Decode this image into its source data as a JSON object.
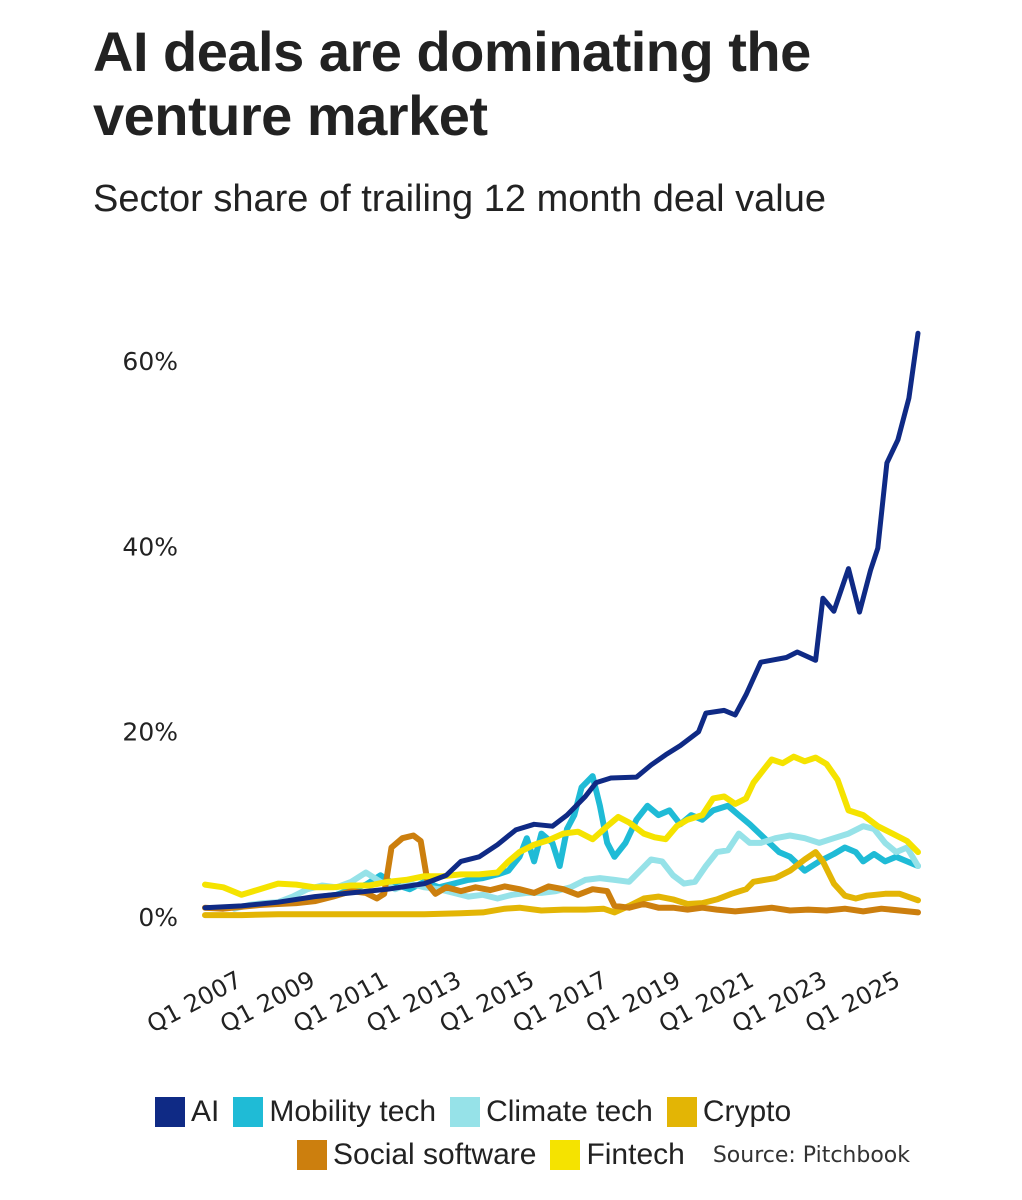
{
  "header": {
    "title": "AI deals are dominating the venture market",
    "subtitle": "Sector share of trailing 12 month deal value"
  },
  "source": "Source: Pitchbook",
  "chart_data": {
    "type": "line",
    "title": "AI deals are dominating the venture market",
    "subtitle": "Sector share of trailing 12 month deal value",
    "xlabel": "",
    "ylabel": "",
    "xlim": [
      2006.0,
      2025.5
    ],
    "ylim": [
      0,
      60
    ],
    "yticks": [
      0,
      20,
      40,
      60
    ],
    "ytick_labels": [
      "0%",
      "20%",
      "40%",
      "60%"
    ],
    "xticks": [
      2007,
      2009,
      2011,
      2013,
      2015,
      2017,
      2019,
      2021,
      2023,
      2025
    ],
    "xtick_labels": [
      "Q1 2007",
      "Q1 2009",
      "Q1 2011",
      "Q1 2013",
      "Q1 2015",
      "Q1 2017",
      "Q1 2019",
      "Q1 2021",
      "Q1 2023",
      "Q1 2025"
    ],
    "grid": false,
    "legend_position": "bottom",
    "series": [
      {
        "name": "Mobility tech",
        "color": "#1FBBD6",
        "points": [
          [
            2008.8,
            1.8
          ],
          [
            2009.2,
            2.2
          ],
          [
            2009.6,
            2.4
          ],
          [
            2010.0,
            3.0
          ],
          [
            2010.4,
            3.5
          ],
          [
            2010.8,
            4.5
          ],
          [
            2011.2,
            3.5
          ],
          [
            2011.6,
            3.0
          ],
          [
            2012.0,
            3.8
          ],
          [
            2012.4,
            3.2
          ],
          [
            2012.8,
            3.6
          ],
          [
            2013.2,
            4.0
          ],
          [
            2013.6,
            4.2
          ],
          [
            2014.0,
            4.6
          ],
          [
            2014.3,
            5.0
          ],
          [
            2014.6,
            6.5
          ],
          [
            2014.8,
            8.5
          ],
          [
            2015.0,
            6.0
          ],
          [
            2015.2,
            9.0
          ],
          [
            2015.5,
            8.0
          ],
          [
            2015.7,
            5.5
          ],
          [
            2015.9,
            9.5
          ],
          [
            2016.1,
            11.0
          ],
          [
            2016.3,
            14.0
          ],
          [
            2016.6,
            15.2
          ],
          [
            2016.8,
            12.0
          ],
          [
            2017.0,
            8.0
          ],
          [
            2017.2,
            6.5
          ],
          [
            2017.5,
            8.0
          ],
          [
            2017.8,
            10.5
          ],
          [
            2018.1,
            12.0
          ],
          [
            2018.4,
            11.0
          ],
          [
            2018.7,
            11.5
          ],
          [
            2019.0,
            10.0
          ],
          [
            2019.3,
            11.0
          ],
          [
            2019.6,
            10.5
          ],
          [
            2019.9,
            11.5
          ],
          [
            2020.3,
            12.0
          ],
          [
            2020.6,
            11.0
          ],
          [
            2020.9,
            10.0
          ],
          [
            2021.3,
            8.5
          ],
          [
            2021.7,
            7.0
          ],
          [
            2022.0,
            6.5
          ],
          [
            2022.4,
            5.0
          ],
          [
            2022.8,
            6.0
          ],
          [
            2023.2,
            6.8
          ],
          [
            2023.5,
            7.5
          ],
          [
            2023.8,
            7.0
          ],
          [
            2024.0,
            6.0
          ],
          [
            2024.3,
            6.8
          ],
          [
            2024.6,
            6.0
          ],
          [
            2024.9,
            6.5
          ],
          [
            2025.2,
            6.0
          ],
          [
            2025.5,
            5.5
          ]
        ]
      },
      {
        "name": "Climate tech",
        "color": "#96E2E8",
        "points": [
          [
            2006.8,
            0.9
          ],
          [
            2007.2,
            1.3
          ],
          [
            2007.6,
            1.5
          ],
          [
            2008.0,
            1.6
          ],
          [
            2008.4,
            2.2
          ],
          [
            2008.8,
            3.0
          ],
          [
            2009.2,
            3.4
          ],
          [
            2009.6,
            3.2
          ],
          [
            2010.0,
            3.8
          ],
          [
            2010.4,
            4.8
          ],
          [
            2010.8,
            3.8
          ],
          [
            2011.2,
            3.0
          ],
          [
            2011.6,
            3.6
          ],
          [
            2012.0,
            3.2
          ],
          [
            2012.4,
            3.0
          ],
          [
            2012.8,
            2.6
          ],
          [
            2013.2,
            2.2
          ],
          [
            2013.6,
            2.4
          ],
          [
            2014.0,
            2.0
          ],
          [
            2014.4,
            2.4
          ],
          [
            2014.8,
            2.6
          ],
          [
            2015.2,
            2.6
          ],
          [
            2015.6,
            2.8
          ],
          [
            2016.0,
            3.2
          ],
          [
            2016.4,
            4.0
          ],
          [
            2016.8,
            4.2
          ],
          [
            2017.2,
            4.0
          ],
          [
            2017.6,
            3.8
          ],
          [
            2017.9,
            5.0
          ],
          [
            2018.2,
            6.2
          ],
          [
            2018.5,
            6.0
          ],
          [
            2018.8,
            4.5
          ],
          [
            2019.1,
            3.6
          ],
          [
            2019.4,
            3.8
          ],
          [
            2019.7,
            5.5
          ],
          [
            2020.0,
            7.0
          ],
          [
            2020.3,
            7.2
          ],
          [
            2020.6,
            9.0
          ],
          [
            2020.9,
            8.0
          ],
          [
            2021.2,
            8.0
          ],
          [
            2021.6,
            8.5
          ],
          [
            2022.0,
            8.8
          ],
          [
            2022.4,
            8.5
          ],
          [
            2022.8,
            8.0
          ],
          [
            2023.2,
            8.5
          ],
          [
            2023.6,
            9.0
          ],
          [
            2024.0,
            9.8
          ],
          [
            2024.3,
            9.5
          ],
          [
            2024.6,
            8.0
          ],
          [
            2024.9,
            7.0
          ],
          [
            2025.2,
            7.5
          ],
          [
            2025.5,
            5.5
          ]
        ]
      },
      {
        "name": "Crypto",
        "color": "#E3B505",
        "points": [
          [
            2006.0,
            0.2
          ],
          [
            2007.0,
            0.2
          ],
          [
            2008.0,
            0.3
          ],
          [
            2009.0,
            0.3
          ],
          [
            2010.0,
            0.3
          ],
          [
            2011.0,
            0.3
          ],
          [
            2012.0,
            0.3
          ],
          [
            2013.0,
            0.4
          ],
          [
            2013.6,
            0.5
          ],
          [
            2014.2,
            0.9
          ],
          [
            2014.6,
            1.0
          ],
          [
            2015.2,
            0.7
          ],
          [
            2015.8,
            0.8
          ],
          [
            2016.4,
            0.8
          ],
          [
            2016.9,
            0.9
          ],
          [
            2017.2,
            0.5
          ],
          [
            2017.6,
            1.2
          ],
          [
            2018.0,
            2.0
          ],
          [
            2018.4,
            2.2
          ],
          [
            2018.8,
            1.9
          ],
          [
            2019.2,
            1.4
          ],
          [
            2019.6,
            1.5
          ],
          [
            2020.0,
            1.9
          ],
          [
            2020.4,
            2.5
          ],
          [
            2020.8,
            3.0
          ],
          [
            2021.0,
            3.8
          ],
          [
            2021.3,
            4.0
          ],
          [
            2021.6,
            4.2
          ],
          [
            2022.0,
            5.0
          ],
          [
            2022.4,
            6.2
          ],
          [
            2022.7,
            7.0
          ],
          [
            2022.9,
            6.0
          ],
          [
            2023.2,
            3.6
          ],
          [
            2023.5,
            2.3
          ],
          [
            2023.8,
            2.0
          ],
          [
            2024.1,
            2.3
          ],
          [
            2024.6,
            2.5
          ],
          [
            2025.0,
            2.5
          ],
          [
            2025.5,
            1.8
          ]
        ]
      },
      {
        "name": "Social software",
        "color": "#CC7F0E",
        "points": [
          [
            2006.0,
            1.0
          ],
          [
            2006.5,
            0.9
          ],
          [
            2007.0,
            1.1
          ],
          [
            2007.5,
            1.3
          ],
          [
            2008.0,
            1.4
          ],
          [
            2008.5,
            1.5
          ],
          [
            2009.0,
            1.7
          ],
          [
            2009.5,
            2.2
          ],
          [
            2010.0,
            2.8
          ],
          [
            2010.4,
            2.6
          ],
          [
            2010.7,
            2.0
          ],
          [
            2010.9,
            2.5
          ],
          [
            2011.1,
            7.5
          ],
          [
            2011.4,
            8.5
          ],
          [
            2011.7,
            8.8
          ],
          [
            2011.9,
            8.2
          ],
          [
            2012.1,
            3.5
          ],
          [
            2012.3,
            2.5
          ],
          [
            2012.6,
            3.2
          ],
          [
            2013.0,
            2.8
          ],
          [
            2013.4,
            3.2
          ],
          [
            2013.8,
            2.9
          ],
          [
            2014.2,
            3.3
          ],
          [
            2014.6,
            3.0
          ],
          [
            2015.0,
            2.6
          ],
          [
            2015.4,
            3.3
          ],
          [
            2015.8,
            3.0
          ],
          [
            2016.2,
            2.4
          ],
          [
            2016.6,
            3.0
          ],
          [
            2017.0,
            2.8
          ],
          [
            2017.2,
            1.2
          ],
          [
            2017.6,
            1.0
          ],
          [
            2018.0,
            1.4
          ],
          [
            2018.4,
            1.0
          ],
          [
            2018.8,
            1.0
          ],
          [
            2019.2,
            0.8
          ],
          [
            2019.6,
            1.0
          ],
          [
            2020.0,
            0.8
          ],
          [
            2020.5,
            0.6
          ],
          [
            2021.0,
            0.8
          ],
          [
            2021.5,
            1.0
          ],
          [
            2022.0,
            0.7
          ],
          [
            2022.5,
            0.8
          ],
          [
            2023.0,
            0.7
          ],
          [
            2023.5,
            0.9
          ],
          [
            2024.0,
            0.6
          ],
          [
            2024.5,
            0.9
          ],
          [
            2025.0,
            0.7
          ],
          [
            2025.5,
            0.5
          ]
        ]
      },
      {
        "name": "Fintech",
        "color": "#F5E300",
        "points": [
          [
            2006.0,
            3.5
          ],
          [
            2006.5,
            3.2
          ],
          [
            2007.0,
            2.4
          ],
          [
            2007.5,
            3.0
          ],
          [
            2008.0,
            3.6
          ],
          [
            2008.5,
            3.5
          ],
          [
            2009.0,
            3.2
          ],
          [
            2009.5,
            3.2
          ],
          [
            2010.0,
            3.4
          ],
          [
            2010.5,
            3.4
          ],
          [
            2011.0,
            3.8
          ],
          [
            2011.5,
            4.0
          ],
          [
            2012.0,
            4.4
          ],
          [
            2012.5,
            4.4
          ],
          [
            2013.0,
            4.6
          ],
          [
            2013.5,
            4.6
          ],
          [
            2014.0,
            4.8
          ],
          [
            2014.3,
            6.0
          ],
          [
            2014.6,
            7.0
          ],
          [
            2015.0,
            7.8
          ],
          [
            2015.4,
            8.3
          ],
          [
            2015.8,
            9.0
          ],
          [
            2016.2,
            9.2
          ],
          [
            2016.6,
            8.4
          ],
          [
            2017.0,
            9.8
          ],
          [
            2017.3,
            10.8
          ],
          [
            2017.6,
            10.2
          ],
          [
            2018.0,
            9.0
          ],
          [
            2018.3,
            8.6
          ],
          [
            2018.6,
            8.4
          ],
          [
            2018.9,
            9.8
          ],
          [
            2019.2,
            10.5
          ],
          [
            2019.6,
            11.0
          ],
          [
            2019.9,
            12.8
          ],
          [
            2020.2,
            13.0
          ],
          [
            2020.5,
            12.2
          ],
          [
            2020.8,
            12.8
          ],
          [
            2021.0,
            14.5
          ],
          [
            2021.3,
            16.0
          ],
          [
            2021.5,
            17.0
          ],
          [
            2021.8,
            16.6
          ],
          [
            2022.1,
            17.3
          ],
          [
            2022.4,
            16.8
          ],
          [
            2022.7,
            17.2
          ],
          [
            2023.0,
            16.5
          ],
          [
            2023.3,
            14.8
          ],
          [
            2023.6,
            11.5
          ],
          [
            2024.0,
            11.0
          ],
          [
            2024.4,
            9.8
          ],
          [
            2024.8,
            9.0
          ],
          [
            2025.2,
            8.2
          ],
          [
            2025.5,
            7.0
          ]
        ]
      },
      {
        "name": "AI",
        "color": "#0F2A85",
        "points": [
          [
            2006.0,
            1.0
          ],
          [
            2007.0,
            1.2
          ],
          [
            2008.0,
            1.6
          ],
          [
            2009.0,
            2.2
          ],
          [
            2010.0,
            2.6
          ],
          [
            2011.0,
            3.0
          ],
          [
            2012.0,
            3.6
          ],
          [
            2012.6,
            4.5
          ],
          [
            2013.0,
            6.0
          ],
          [
            2013.5,
            6.5
          ],
          [
            2014.0,
            7.8
          ],
          [
            2014.5,
            9.4
          ],
          [
            2015.0,
            10.0
          ],
          [
            2015.5,
            9.8
          ],
          [
            2015.9,
            11.0
          ],
          [
            2016.4,
            13.0
          ],
          [
            2016.7,
            14.5
          ],
          [
            2017.1,
            15.0
          ],
          [
            2017.8,
            15.1
          ],
          [
            2018.2,
            16.4
          ],
          [
            2018.6,
            17.5
          ],
          [
            2019.0,
            18.5
          ],
          [
            2019.5,
            20.0
          ],
          [
            2019.7,
            22.0
          ],
          [
            2020.2,
            22.3
          ],
          [
            2020.5,
            21.8
          ],
          [
            2020.8,
            24.0
          ],
          [
            2021.2,
            27.5
          ],
          [
            2021.9,
            28.0
          ],
          [
            2022.2,
            28.6
          ],
          [
            2022.7,
            27.7
          ],
          [
            2022.9,
            34.4
          ],
          [
            2023.2,
            33.0
          ],
          [
            2023.6,
            37.6
          ],
          [
            2023.9,
            32.9
          ],
          [
            2024.2,
            37.4
          ],
          [
            2024.4,
            39.8
          ],
          [
            2024.65,
            49.0
          ],
          [
            2024.95,
            51.5
          ],
          [
            2025.25,
            56.0
          ],
          [
            2025.5,
            63.0
          ]
        ]
      }
    ]
  },
  "legend": {
    "row1": [
      {
        "label": "AI",
        "color": "#0F2A85"
      },
      {
        "label": "Mobility tech",
        "color": "#1FBBD6"
      },
      {
        "label": "Climate tech",
        "color": "#96E2E8"
      },
      {
        "label": "Crypto",
        "color": "#E3B505"
      }
    ],
    "row2": [
      {
        "label": "Social software",
        "color": "#CC7F0E"
      },
      {
        "label": "Fintech",
        "color": "#F5E300"
      }
    ]
  }
}
